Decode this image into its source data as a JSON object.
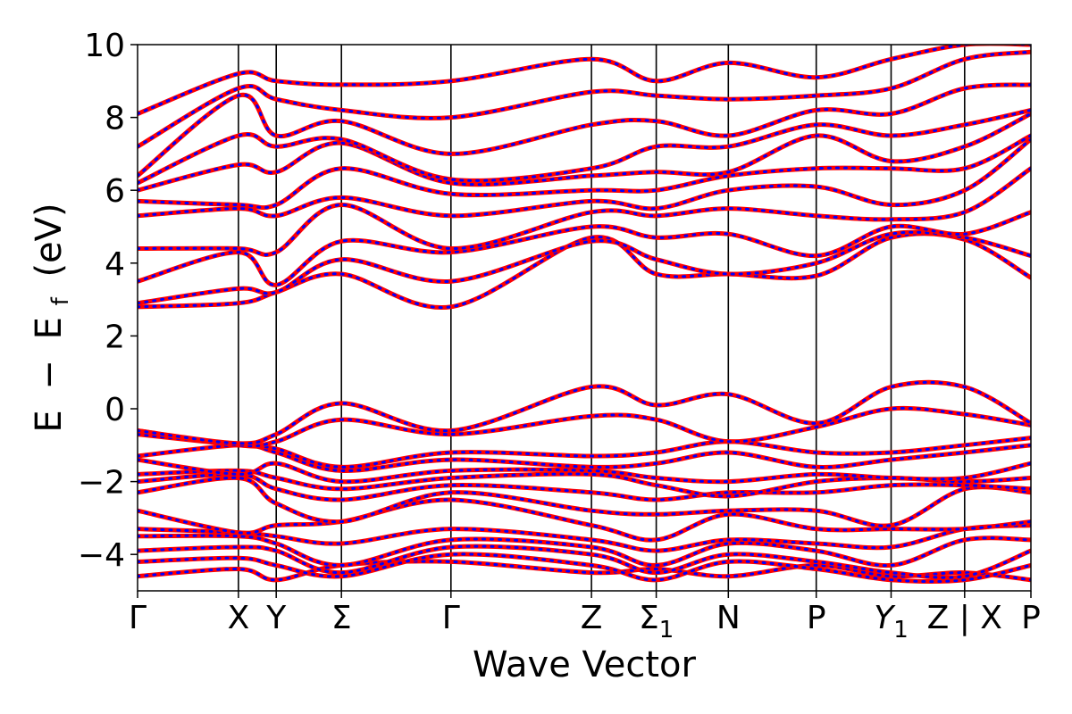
{
  "chart_data": {
    "type": "line",
    "title": "",
    "xlabel": "Wave Vector",
    "ylabel_parts": {
      "prefix": "E",
      "minus": "−",
      "ef_base": "E",
      "ef_sub": "f",
      "unit": "(eV)"
    },
    "ylim": [
      -5,
      10
    ],
    "y_ticks": [
      -4,
      -2,
      0,
      2,
      4,
      6,
      8,
      10
    ],
    "y_tick_labels": [
      "−4",
      "−2",
      "0",
      "2",
      "4",
      "6",
      "8",
      "10"
    ],
    "x_range": [
      0,
      1
    ],
    "k_points": [
      {
        "label": "Γ",
        "sub": "",
        "x": 0.0,
        "line": false
      },
      {
        "label": "X",
        "sub": "",
        "x": 0.1129,
        "line": true
      },
      {
        "label": "Y",
        "sub": "",
        "x": 0.1552,
        "line": true
      },
      {
        "label": "Σ",
        "sub": "",
        "x": 0.2282,
        "line": true
      },
      {
        "label": "Γ",
        "sub": "",
        "x": 0.3508,
        "line": true
      },
      {
        "label": "Z",
        "sub": "",
        "x": 0.5081,
        "line": true
      },
      {
        "label": "Σ",
        "sub": "1",
        "x": 0.5806,
        "line": true
      },
      {
        "label": "N",
        "sub": "",
        "x": 0.6613,
        "line": true
      },
      {
        "label": "P",
        "sub": "",
        "x": 0.7597,
        "line": true
      },
      {
        "label": "Y",
        "sub": "1",
        "x": 0.8435,
        "line": true
      },
      {
        "label": "Z | X",
        "sub": "",
        "x": 0.9258,
        "line": true
      },
      {
        "label": "P",
        "sub": "",
        "x": 1.0,
        "line": false
      }
    ],
    "series": [
      {
        "color": "#ff0000",
        "dashed": false
      },
      {
        "color": "#0000ff",
        "dashed": true
      }
    ],
    "grid": false,
    "legend": "none",
    "bands_note_segments": [
      [
        0.0,
        0.1129
      ],
      [
        0.1129,
        0.1552
      ],
      [
        0.1552,
        0.2282
      ],
      [
        0.2282,
        0.3508
      ],
      [
        0.3508,
        0.5081
      ],
      [
        0.5081,
        0.5806
      ],
      [
        0.5806,
        0.6613
      ],
      [
        0.6613,
        0.7597
      ],
      [
        0.7597,
        0.8435
      ],
      [
        0.8435,
        0.9258
      ],
      [
        0.9258,
        1.0
      ]
    ],
    "bands": [
      [
        -4.6,
        -4.4,
        -4.7,
        -4.3,
        -4.2,
        -4.5,
        -4.4,
        -4.6,
        -4.3,
        -4.6,
        -4.5,
        -4.7
      ],
      [
        -4.2,
        -4.1,
        -4.3,
        -4.6,
        -4.0,
        -4.3,
        -4.7,
        -4.2,
        -4.4,
        -4.7,
        -4.7,
        -4.3
      ],
      [
        -3.9,
        -3.8,
        -3.9,
        -4.5,
        -3.8,
        -4.0,
        -4.5,
        -4.0,
        -4.2,
        -4.5,
        -4.6,
        -3.9
      ],
      [
        -3.5,
        -3.5,
        -3.7,
        -4.3,
        -3.6,
        -3.8,
        -4.3,
        -3.7,
        -3.9,
        -4.3,
        -3.6,
        -3.6
      ],
      [
        -3.3,
        -3.4,
        -3.5,
        -3.7,
        -3.3,
        -3.6,
        -3.9,
        -3.6,
        -3.7,
        -3.8,
        -3.3,
        -3.2
      ],
      [
        -2.8,
        -3.4,
        -3.2,
        -3.1,
        -2.5,
        -3.2,
        -3.6,
        -2.9,
        -3.3,
        -3.3,
        -3.3,
        -3.1
      ],
      [
        -2.3,
        -1.9,
        -2.6,
        -3.1,
        -2.3,
        -2.8,
        -2.9,
        -2.8,
        -2.8,
        -3.2,
        -2.2,
        -2.3
      ],
      [
        -2.0,
        -1.8,
        -2.2,
        -2.5,
        -2.1,
        -2.3,
        -2.5,
        -2.3,
        -2.3,
        -2.1,
        -2.1,
        -2.2
      ],
      [
        -1.8,
        -1.7,
        -1.9,
        -2.2,
        -1.9,
        -1.8,
        -2.1,
        -2.4,
        -2.0,
        -1.9,
        -2.0,
        -1.9
      ],
      [
        -1.4,
        -1.8,
        -1.5,
        -2.0,
        -1.7,
        -1.7,
        -1.9,
        -2.0,
        -1.8,
        -1.9,
        -1.9,
        -1.5
      ],
      [
        -1.3,
        -1.0,
        -1.2,
        -1.7,
        -1.4,
        -1.6,
        -1.5,
        -1.2,
        -1.6,
        -1.4,
        -1.2,
        -1.0
      ],
      [
        -0.7,
        -1.0,
        -1.1,
        -1.6,
        -1.2,
        -1.3,
        -1.2,
        -0.9,
        -1.2,
        -1.2,
        -1.0,
        -0.8
      ],
      [
        -0.6,
        -1.0,
        -0.9,
        -0.3,
        -0.7,
        -0.2,
        -0.3,
        -0.9,
        -0.5,
        0.0,
        -0.15,
        -0.45
      ],
      [
        -0.6,
        -0.95,
        -0.7,
        0.15,
        -0.6,
        0.6,
        0.1,
        0.4,
        -0.4,
        0.6,
        0.6,
        -0.4
      ],
      [
        2.8,
        2.9,
        3.2,
        3.7,
        2.8,
        4.7,
        3.7,
        3.7,
        3.65,
        4.7,
        4.65,
        3.6
      ],
      [
        2.9,
        3.3,
        3.2,
        4.1,
        3.5,
        4.6,
        4.1,
        3.7,
        4.0,
        4.8,
        4.7,
        4.2
      ],
      [
        3.5,
        4.3,
        3.4,
        4.6,
        4.3,
        5.0,
        4.7,
        4.8,
        4.2,
        5.0,
        4.8,
        5.4
      ],
      [
        4.4,
        4.4,
        4.3,
        5.6,
        4.4,
        5.4,
        5.3,
        5.5,
        5.3,
        5.2,
        5.4,
        6.6
      ],
      [
        5.3,
        5.5,
        5.3,
        5.8,
        5.3,
        5.7,
        5.5,
        6.0,
        6.1,
        5.6,
        6.0,
        7.4
      ],
      [
        5.7,
        5.6,
        5.6,
        6.6,
        5.9,
        6.0,
        6.0,
        6.4,
        6.6,
        6.6,
        6.6,
        7.5
      ],
      [
        6.0,
        6.7,
        6.5,
        7.3,
        6.2,
        6.4,
        6.5,
        6.5,
        7.5,
        6.8,
        7.2,
        8.1
      ],
      [
        6.2,
        7.5,
        7.2,
        7.4,
        6.3,
        6.6,
        7.2,
        7.2,
        7.8,
        7.5,
        7.8,
        8.2
      ],
      [
        6.4,
        8.6,
        7.5,
        7.9,
        7.0,
        7.8,
        7.9,
        7.5,
        8.2,
        8.1,
        8.8,
        8.9
      ],
      [
        7.2,
        8.8,
        8.5,
        8.2,
        8.0,
        8.7,
        8.6,
        8.5,
        8.6,
        8.8,
        9.6,
        9.8
      ],
      [
        8.1,
        9.2,
        9.0,
        8.9,
        9.0,
        9.6,
        9.0,
        9.5,
        9.1,
        9.6,
        10.0,
        10.0
      ]
    ]
  }
}
